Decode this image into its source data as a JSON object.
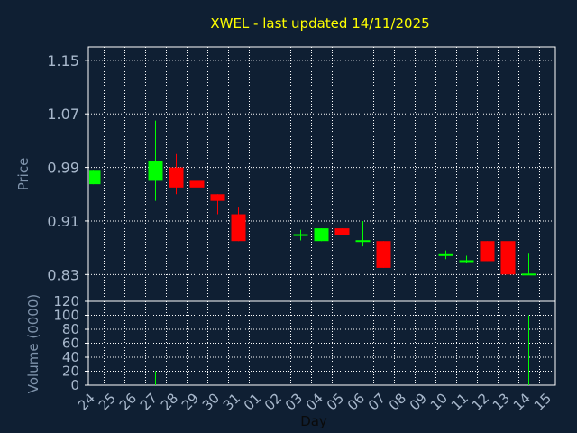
{
  "chart_data": {
    "type": "candlestick",
    "title": "XWEL - last updated 14/11/2025",
    "colors": {
      "background": "#0f1f33",
      "up": "#00ff00",
      "down": "#ff0000",
      "grid": "#ffffff",
      "axes": "#ffffff",
      "title": "#ffff00",
      "tick_text": "#a8b8cc"
    },
    "price_panel": {
      "ylabel": "Price",
      "ylim": [
        0.79,
        1.17
      ],
      "yticks": [
        "1.15",
        "1.07",
        "0.99",
        "0.91",
        "0.83"
      ],
      "grid": true
    },
    "volume_panel": {
      "ylabel": "Volume (0000)",
      "ylim": [
        0,
        120
      ],
      "yticks": [
        "120",
        "100",
        "80",
        "60",
        "40",
        "20",
        "0"
      ],
      "grid": true
    },
    "x_axis": {
      "xlabel": "Day",
      "ticks": [
        "24",
        "25",
        "26",
        "27",
        "28",
        "29",
        "30",
        "31",
        "01",
        "02",
        "03",
        "04",
        "05",
        "06",
        "07",
        "08",
        "09",
        "10",
        "11",
        "12",
        "13",
        "14",
        "15"
      ]
    },
    "candles": [
      {
        "day": 0,
        "open": 0.965,
        "close": 0.985,
        "high": 0.985,
        "low": 0.965
      },
      {
        "day": 3,
        "open": 0.97,
        "close": 1.0,
        "high": 1.06,
        "low": 0.94
      },
      {
        "day": 4,
        "open": 0.99,
        "close": 0.96,
        "high": 1.01,
        "low": 0.95
      },
      {
        "day": 5,
        "open": 0.97,
        "close": 0.96,
        "high": 0.97,
        "low": 0.95
      },
      {
        "day": 6,
        "open": 0.95,
        "close": 0.94,
        "high": 0.95,
        "low": 0.92
      },
      {
        "day": 7,
        "open": 0.92,
        "close": 0.88,
        "high": 0.93,
        "low": 0.88
      },
      {
        "day": 10,
        "open": 0.889,
        "close": 0.889,
        "high": 0.897,
        "low": 0.881
      },
      {
        "day": 11,
        "open": 0.88,
        "close": 0.899,
        "high": 0.899,
        "low": 0.88
      },
      {
        "day": 12,
        "open": 0.899,
        "close": 0.889,
        "high": 0.899,
        "low": 0.889
      },
      {
        "day": 13,
        "open": 0.88,
        "close": 0.88,
        "high": 0.91,
        "low": 0.872
      },
      {
        "day": 14,
        "open": 0.88,
        "close": 0.84,
        "high": 0.88,
        "low": 0.84
      },
      {
        "day": 17,
        "open": 0.859,
        "close": 0.859,
        "high": 0.866,
        "low": 0.853
      },
      {
        "day": 18,
        "open": 0.85,
        "close": 0.85,
        "high": 0.858,
        "low": 0.848
      },
      {
        "day": 19,
        "open": 0.88,
        "close": 0.85,
        "high": 0.88,
        "low": 0.85
      },
      {
        "day": 20,
        "open": 0.88,
        "close": 0.83,
        "high": 0.88,
        "low": 0.83
      },
      {
        "day": 21,
        "open": 0.83,
        "close": 0.83,
        "high": 0.861,
        "low": 0.83
      }
    ],
    "volume": [
      {
        "day": 3,
        "value": 20,
        "color": "#00ff00"
      },
      {
        "day": 21,
        "value": 100,
        "color": "#00ff00"
      }
    ]
  }
}
